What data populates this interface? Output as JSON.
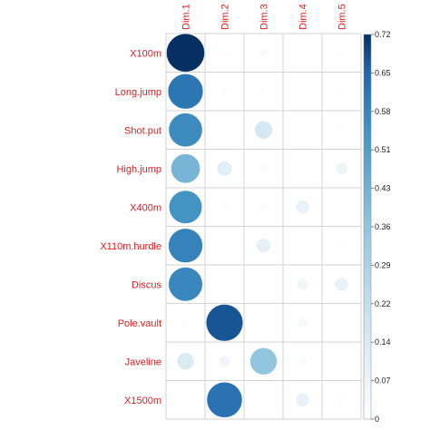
{
  "chart_data": {
    "type": "heatmap",
    "subtype": "circle-correlation-plot",
    "title": "",
    "rows": [
      "X100m",
      "Long.jump",
      "Shot.put",
      "High.jump",
      "X400m",
      "X110m.hurdle",
      "Discus",
      "Pole.vault",
      "Javeline",
      "X1500m"
    ],
    "columns": [
      "Dim.1",
      "Dim.2",
      "Dim.3",
      "Dim.4",
      "Dim.5"
    ],
    "values": [
      [
        0.72,
        0.01,
        0.03,
        0.0,
        0.01
      ],
      [
        0.61,
        0.02,
        0.01,
        0.0,
        0.01
      ],
      [
        0.56,
        0.0,
        0.16,
        0.0,
        0.01
      ],
      [
        0.42,
        0.11,
        0.03,
        0.0,
        0.07
      ],
      [
        0.54,
        0.02,
        0.02,
        0.09,
        0.0
      ],
      [
        0.58,
        0.0,
        0.1,
        0.0,
        0.01
      ],
      [
        0.57,
        0.0,
        0.01,
        0.06,
        0.09
      ],
      [
        0.02,
        0.67,
        0.0,
        0.04,
        0.0
      ],
      [
        0.14,
        0.06,
        0.36,
        0.03,
        0.0
      ],
      [
        0.0,
        0.62,
        0.01,
        0.09,
        0.02
      ]
    ],
    "scale": {
      "min": 0,
      "max": 0.72
    },
    "legend": {
      "position": "right",
      "ticks": [
        "0.72",
        "0.65",
        "0.58",
        "0.51",
        "0.43",
        "0.36",
        "0.29",
        "0.22",
        "0.14",
        "0.07",
        "0"
      ]
    },
    "label_color": "#e41a1c",
    "color_low": "#ffffff",
    "color_high": "#053061",
    "grid": true
  }
}
